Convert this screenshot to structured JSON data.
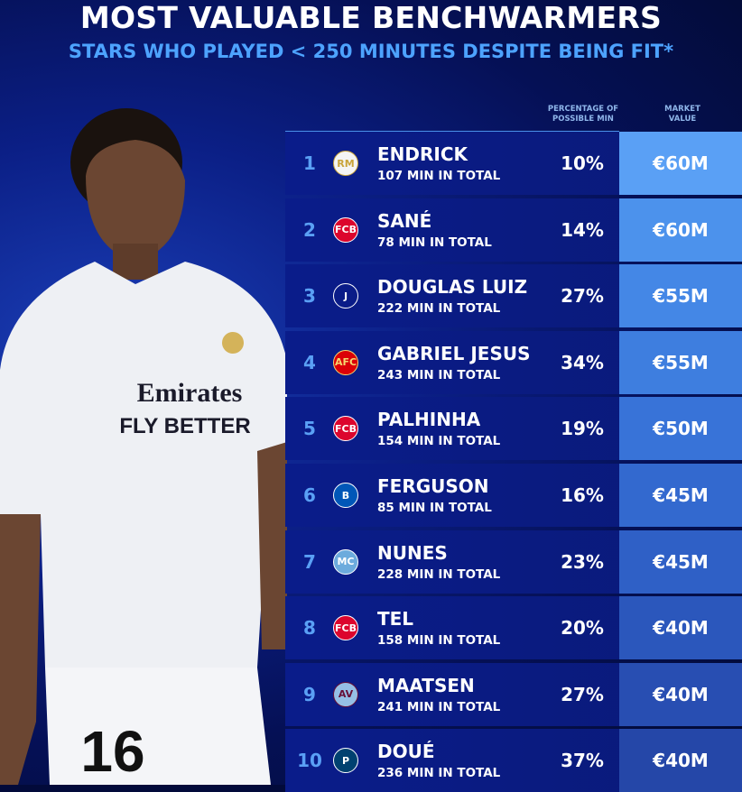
{
  "title": "MOST VALUABLE BENCHWARMERS",
  "subtitle": "STARS WHO PLAYED < 250 MINUTES DESPITE BEING FIT*",
  "headers": {
    "percentage": "PERCENTAGE OF POSSIBLE MIN",
    "value": "MARKET VALUE"
  },
  "player_photo": {
    "sponsor": "Emirates FLY BETTER",
    "shirt_number": "16"
  },
  "rows": [
    {
      "rank": "1",
      "club_icon": "real-madrid-crest",
      "name": "ENDRICK",
      "minutes": "107 MIN IN TOTAL",
      "percentage": "10%",
      "value": "€60M",
      "value_color": "#5aa0f5"
    },
    {
      "rank": "2",
      "club_icon": "bayern-crest",
      "name": "SANÉ",
      "minutes": "78 MIN IN TOTAL",
      "percentage": "14%",
      "value": "€60M",
      "value_color": "#4c92ec"
    },
    {
      "rank": "3",
      "club_icon": "juventus-crest",
      "name": "DOUGLAS LUIZ",
      "minutes": "222 MIN IN TOTAL",
      "percentage": "27%",
      "value": "€55M",
      "value_color": "#4487e6"
    },
    {
      "rank": "4",
      "club_icon": "arsenal-crest",
      "name": "GABRIEL JESUS",
      "minutes": "243 MIN IN TOTAL",
      "percentage": "34%",
      "value": "€55M",
      "value_color": "#3e7edf"
    },
    {
      "rank": "5",
      "club_icon": "bayern-crest",
      "name": "PALHINHA",
      "minutes": "154 MIN IN TOTAL",
      "percentage": "19%",
      "value": "€50M",
      "value_color": "#3873d8"
    },
    {
      "rank": "6",
      "club_icon": "brighton-crest",
      "name": "FERGUSON",
      "minutes": "85 MIN IN TOTAL",
      "percentage": "16%",
      "value": "€45M",
      "value_color": "#3369cf"
    },
    {
      "rank": "7",
      "club_icon": "man-city-crest",
      "name": "NUNES",
      "minutes": "228 MIN IN TOTAL",
      "percentage": "23%",
      "value": "€45M",
      "value_color": "#2f60c6"
    },
    {
      "rank": "8",
      "club_icon": "bayern-crest",
      "name": "TEL",
      "minutes": "158 MIN IN TOTAL",
      "percentage": "20%",
      "value": "€40M",
      "value_color": "#2b57bc"
    },
    {
      "rank": "9",
      "club_icon": "aston-villa-crest",
      "name": "MAATSEN",
      "minutes": "241 MIN IN TOTAL",
      "percentage": "27%",
      "value": "€40M",
      "value_color": "#284eb2"
    },
    {
      "rank": "10",
      "club_icon": "psg-crest",
      "name": "DOUÉ",
      "minutes": "236 MIN IN TOTAL",
      "percentage": "37%",
      "value": "€40M",
      "value_color": "#2547a8"
    }
  ]
}
